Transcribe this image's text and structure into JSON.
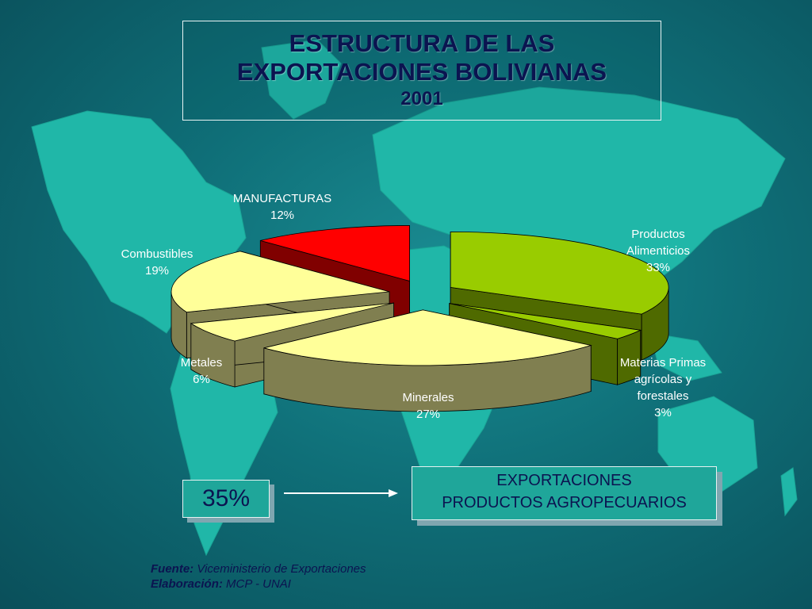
{
  "title": {
    "line1": "ESTRUCTURA DE LAS",
    "line2": "EXPORTACIONES BOLIVIANAS",
    "year": "2001"
  },
  "chart_data": {
    "type": "pie",
    "slices": [
      {
        "label": "Productos Alimenticios",
        "label_lines": [
          "Productos",
          "Alimenticios",
          "33%"
        ],
        "value": 33,
        "color": "#99cc00",
        "side": "#4f6a00"
      },
      {
        "label": "Materias Primas agrícolas y forestales",
        "label_lines": [
          "Materias Primas",
          "agrícolas y",
          "forestales",
          "3%"
        ],
        "value": 3,
        "color": "#99cc00",
        "side": "#4f6a00"
      },
      {
        "label": "Minerales",
        "label_lines": [
          "Minerales",
          "27%"
        ],
        "value": 27,
        "color": "#ffff99",
        "side": "#807f50"
      },
      {
        "label": "Metales",
        "label_lines": [
          "Metales",
          "6%"
        ],
        "value": 6,
        "color": "#ffff99",
        "side": "#807f50"
      },
      {
        "label": "Combustibles",
        "label_lines": [
          "Combustibles",
          "19%"
        ],
        "value": 19,
        "color": "#ffff99",
        "side": "#807f50"
      },
      {
        "label": "MANUFACTURAS",
        "label_lines": [
          "MANUFACTURAS",
          "12%"
        ],
        "value": 12,
        "color": "#ff0000",
        "side": "#800000"
      }
    ]
  },
  "highlight": {
    "percent": "35%",
    "box_line1": "EXPORTACIONES",
    "box_line2": "PRODUCTOS AGROPECUARIOS"
  },
  "footer": {
    "source_label": "Fuente:",
    "source_value": "Viceministerio de Exportaciones",
    "elab_label": "Elaboración:",
    "elab_value": "MCP - UNAI"
  },
  "colors": {
    "background": "#0f6f78",
    "continents": "#20b7a8",
    "title_text": "#0b1450"
  }
}
